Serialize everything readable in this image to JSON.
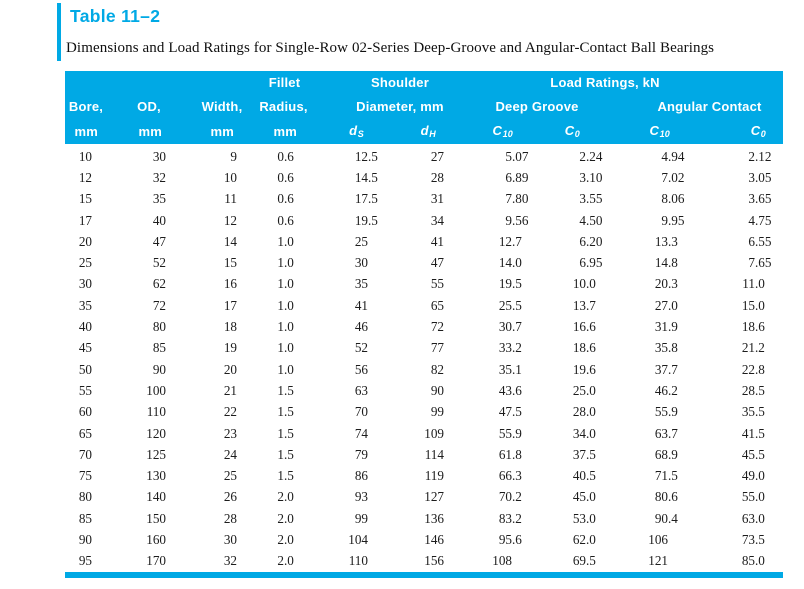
{
  "colors": {
    "accent": "#00A9E5",
    "ink": "#1C1C1C",
    "header_text": "#FFFFFF"
  },
  "title": "Table 11–2",
  "subtitle": "Dimensions and Load Ratings for Single-Row 02-Series Deep-Groove and Angular-Contact Ball Bearings",
  "table": {
    "header": {
      "groups": {
        "fillet": "Fillet",
        "shoulder": "Shoulder",
        "load_ratings": "Load Ratings, kN"
      },
      "columns": {
        "bore": "Bore,",
        "od": "OD,",
        "width": "Width,",
        "radius": "Radius,",
        "diameter": "Diameter, mm",
        "deep_groove": "Deep Groove",
        "angular_contact": "Angular Contact"
      },
      "units": {
        "mm": "mm",
        "ds": {
          "base": "d",
          "sub": "S"
        },
        "dh": {
          "base": "d",
          "sub": "H"
        },
        "c10": {
          "base": "C",
          "sub": "10"
        },
        "c0": {
          "base": "C",
          "sub": "0"
        }
      }
    },
    "column_keys": [
      "bore-mm",
      "od-mm",
      "width-mm",
      "fillet-radius-mm",
      "shoulder-ds-mm",
      "shoulder-dh-mm",
      "deep-groove-c10-kn",
      "deep-groove-c0-kn",
      "angular-contact-c10-kn",
      "angular-contact-c0-kn"
    ],
    "rows": [
      [
        "10",
        "30",
        "9",
        "0.6",
        "12.5",
        "27",
        "5.07",
        "2.24",
        "4.94",
        "2.12"
      ],
      [
        "12",
        "32",
        "10",
        "0.6",
        "14.5",
        "28",
        "6.89",
        "3.10",
        "7.02",
        "3.05"
      ],
      [
        "15",
        "35",
        "11",
        "0.6",
        "17.5",
        "31",
        "7.80",
        "3.55",
        "8.06",
        "3.65"
      ],
      [
        "17",
        "40",
        "12",
        "0.6",
        "19.5",
        "34",
        "9.56",
        "4.50",
        "9.95",
        "4.75"
      ],
      [
        "20",
        "47",
        "14",
        "1.0",
        "25",
        "41",
        "12.7",
        "6.20",
        "13.3",
        "6.55"
      ],
      [
        "25",
        "52",
        "15",
        "1.0",
        "30",
        "47",
        "14.0",
        "6.95",
        "14.8",
        "7.65"
      ],
      [
        "30",
        "62",
        "16",
        "1.0",
        "35",
        "55",
        "19.5",
        "10.0",
        "20.3",
        "11.0"
      ],
      [
        "35",
        "72",
        "17",
        "1.0",
        "41",
        "65",
        "25.5",
        "13.7",
        "27.0",
        "15.0"
      ],
      [
        "40",
        "80",
        "18",
        "1.0",
        "46",
        "72",
        "30.7",
        "16.6",
        "31.9",
        "18.6"
      ],
      [
        "45",
        "85",
        "19",
        "1.0",
        "52",
        "77",
        "33.2",
        "18.6",
        "35.8",
        "21.2"
      ],
      [
        "50",
        "90",
        "20",
        "1.0",
        "56",
        "82",
        "35.1",
        "19.6",
        "37.7",
        "22.8"
      ],
      [
        "55",
        "100",
        "21",
        "1.5",
        "63",
        "90",
        "43.6",
        "25.0",
        "46.2",
        "28.5"
      ],
      [
        "60",
        "110",
        "22",
        "1.5",
        "70",
        "99",
        "47.5",
        "28.0",
        "55.9",
        "35.5"
      ],
      [
        "65",
        "120",
        "23",
        "1.5",
        "74",
        "109",
        "55.9",
        "34.0",
        "63.7",
        "41.5"
      ],
      [
        "70",
        "125",
        "24",
        "1.5",
        "79",
        "114",
        "61.8",
        "37.5",
        "68.9",
        "45.5"
      ],
      [
        "75",
        "130",
        "25",
        "1.5",
        "86",
        "119",
        "66.3",
        "40.5",
        "71.5",
        "49.0"
      ],
      [
        "80",
        "140",
        "26",
        "2.0",
        "93",
        "127",
        "70.2",
        "45.0",
        "80.6",
        "55.0"
      ],
      [
        "85",
        "150",
        "28",
        "2.0",
        "99",
        "136",
        "83.2",
        "53.0",
        "90.4",
        "63.0"
      ],
      [
        "90",
        "160",
        "30",
        "2.0",
        "104",
        "146",
        "95.6",
        "62.0",
        "106",
        "73.5"
      ],
      [
        "95",
        "170",
        "32",
        "2.0",
        "110",
        "156",
        "108",
        "69.5",
        "121",
        "85.0"
      ]
    ]
  }
}
